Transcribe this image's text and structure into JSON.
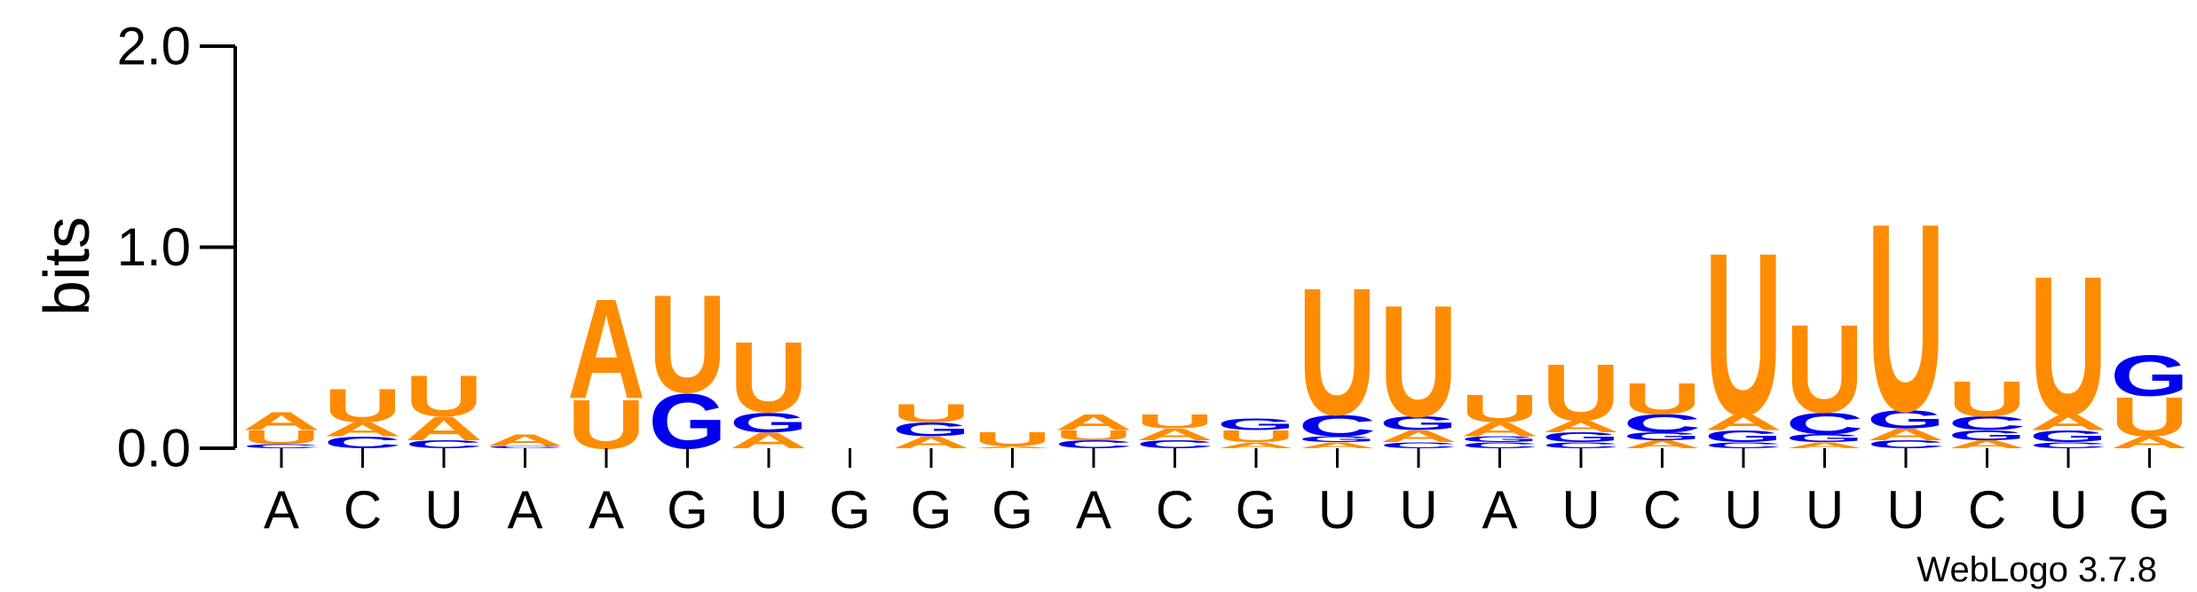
{
  "chart_data": {
    "type": "sequence-logo",
    "ylabel": "bits",
    "ylim": [
      0,
      2
    ],
    "yticks": [
      {
        "value": 0,
        "label": "0.0"
      },
      {
        "value": 1,
        "label": "1.0"
      },
      {
        "value": 2,
        "label": "2.0"
      }
    ],
    "x_labels": [
      "A",
      "C",
      "U",
      "A",
      "A",
      "G",
      "U",
      "G",
      "G",
      "G",
      "A",
      "C",
      "G",
      "U",
      "U",
      "A",
      "U",
      "C",
      "U",
      "U",
      "U",
      "C",
      "U",
      "G"
    ],
    "colors": {
      "A": "#ff8c00",
      "U": "#ff8c00",
      "C": "#0000ee",
      "G": "#0000ee"
    },
    "positions": [
      [
        {
          "letter": "C",
          "bits": 0.02
        },
        {
          "letter": "U",
          "bits": 0.07
        },
        {
          "letter": "A",
          "bits": 0.09
        }
      ],
      [
        {
          "letter": "C",
          "bits": 0.06
        },
        {
          "letter": "A",
          "bits": 0.07
        },
        {
          "letter": "U",
          "bits": 0.17
        }
      ],
      [
        {
          "letter": "C",
          "bits": 0.04
        },
        {
          "letter": "A",
          "bits": 0.12
        },
        {
          "letter": "U",
          "bits": 0.21
        }
      ],
      [
        {
          "letter": "C",
          "bits": 0.01
        },
        {
          "letter": "A",
          "bits": 0.06
        }
      ],
      [
        {
          "letter": "U",
          "bits": 0.25
        },
        {
          "letter": "A",
          "bits": 0.51
        }
      ],
      [
        {
          "letter": "G",
          "bits": 0.28
        },
        {
          "letter": "U",
          "bits": 0.5
        }
      ],
      [
        {
          "letter": "A",
          "bits": 0.08
        },
        {
          "letter": "G",
          "bits": 0.1
        },
        {
          "letter": "U",
          "bits": 0.36
        }
      ],
      [],
      [
        {
          "letter": "A",
          "bits": 0.06
        },
        {
          "letter": "G",
          "bits": 0.07
        },
        {
          "letter": "U",
          "bits": 0.09
        }
      ],
      [
        {
          "letter": "A",
          "bits": 0.01
        },
        {
          "letter": "U",
          "bits": 0.07
        }
      ],
      [
        {
          "letter": "C",
          "bits": 0.04
        },
        {
          "letter": "U",
          "bits": 0.05
        },
        {
          "letter": "A",
          "bits": 0.08
        }
      ],
      [
        {
          "letter": "C",
          "bits": 0.04
        },
        {
          "letter": "A",
          "bits": 0.06
        },
        {
          "letter": "U",
          "bits": 0.07
        }
      ],
      [
        {
          "letter": "A",
          "bits": 0.03
        },
        {
          "letter": "U",
          "bits": 0.06
        },
        {
          "letter": "G",
          "bits": 0.06
        }
      ],
      [
        {
          "letter": "A",
          "bits": 0.03
        },
        {
          "letter": "G",
          "bits": 0.03
        },
        {
          "letter": "C",
          "bits": 0.11
        },
        {
          "letter": "U",
          "bits": 0.65
        }
      ],
      [
        {
          "letter": "C",
          "bits": 0.03
        },
        {
          "letter": "A",
          "bits": 0.06
        },
        {
          "letter": "G",
          "bits": 0.07
        },
        {
          "letter": "U",
          "bits": 0.57
        }
      ],
      [
        {
          "letter": "C",
          "bits": 0.03
        },
        {
          "letter": "G",
          "bits": 0.03
        },
        {
          "letter": "A",
          "bits": 0.07
        },
        {
          "letter": "U",
          "bits": 0.14
        }
      ],
      [
        {
          "letter": "C",
          "bits": 0.03
        },
        {
          "letter": "G",
          "bits": 0.05
        },
        {
          "letter": "A",
          "bits": 0.06
        },
        {
          "letter": "U",
          "bits": 0.29
        }
      ],
      [
        {
          "letter": "A",
          "bits": 0.04
        },
        {
          "letter": "G",
          "bits": 0.04
        },
        {
          "letter": "C",
          "bits": 0.09
        },
        {
          "letter": "U",
          "bits": 0.16
        }
      ],
      [
        {
          "letter": "C",
          "bits": 0.03
        },
        {
          "letter": "G",
          "bits": 0.06
        },
        {
          "letter": "A",
          "bits": 0.08
        },
        {
          "letter": "U",
          "bits": 0.83
        }
      ],
      [
        {
          "letter": "A",
          "bits": 0.03
        },
        {
          "letter": "G",
          "bits": 0.04
        },
        {
          "letter": "C",
          "bits": 0.11
        },
        {
          "letter": "U",
          "bits": 0.45
        }
      ],
      [
        {
          "letter": "C",
          "bits": 0.04
        },
        {
          "letter": "A",
          "bits": 0.06
        },
        {
          "letter": "G",
          "bits": 0.09
        },
        {
          "letter": "U",
          "bits": 0.96
        }
      ],
      [
        {
          "letter": "A",
          "bits": 0.04
        },
        {
          "letter": "G",
          "bits": 0.05
        },
        {
          "letter": "C",
          "bits": 0.07
        },
        {
          "letter": "U",
          "bits": 0.18
        }
      ],
      [
        {
          "letter": "C",
          "bits": 0.03
        },
        {
          "letter": "G",
          "bits": 0.06
        },
        {
          "letter": "A",
          "bits": 0.08
        },
        {
          "letter": "U",
          "bits": 0.71
        }
      ],
      [
        {
          "letter": "A",
          "bits": 0.06
        },
        {
          "letter": "U",
          "bits": 0.2
        },
        {
          "letter": "G",
          "bits": 0.21
        }
      ]
    ],
    "footer": "WebLogo 3.7.8"
  }
}
